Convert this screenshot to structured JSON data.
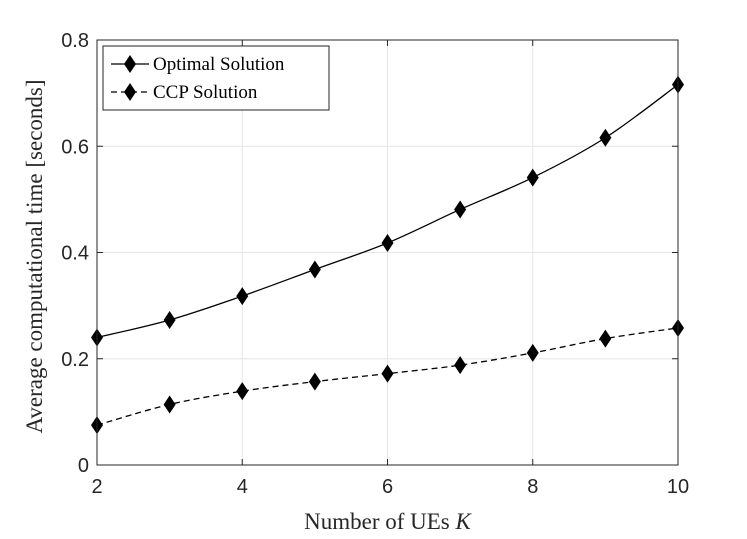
{
  "chart_data": {
    "type": "line",
    "title": "",
    "xlabel": "Number of UEs",
    "xlabel_symbol": "K",
    "ylabel": "Average computational time [seconds]",
    "x": [
      2,
      3,
      4,
      5,
      6,
      7,
      8,
      9,
      10
    ],
    "xlim": [
      2,
      10
    ],
    "ylim": [
      0,
      0.8
    ],
    "xticks": [
      "2",
      "4",
      "6",
      "8",
      "10"
    ],
    "yticks": [
      "0",
      "0.2",
      "0.4",
      "0.6",
      "0.8"
    ],
    "grid": true,
    "legend_position": "top-left",
    "series": [
      {
        "name": "Optimal Solution",
        "line_style": "solid",
        "marker": "diamond",
        "color": "#000000",
        "values": [
          0.24,
          0.273,
          0.318,
          0.368,
          0.418,
          0.481,
          0.541,
          0.616,
          0.716
        ]
      },
      {
        "name": "CCP Solution",
        "line_style": "dashed",
        "marker": "diamond",
        "color": "#000000",
        "values": [
          0.075,
          0.114,
          0.139,
          0.157,
          0.172,
          0.188,
          0.211,
          0.238,
          0.258
        ]
      }
    ]
  }
}
